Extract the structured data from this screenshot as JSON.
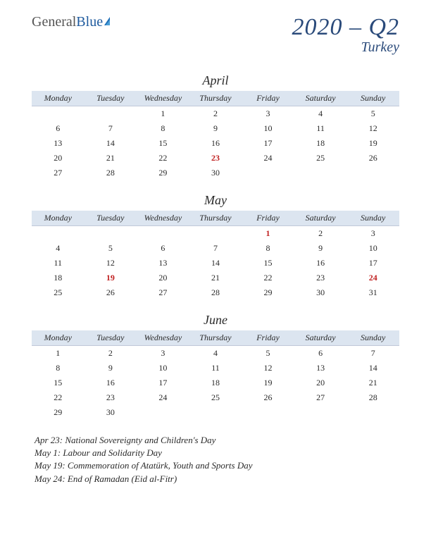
{
  "logo": {
    "part1": "General",
    "part2": "Blue"
  },
  "title": {
    "main": "2020 – Q2",
    "sub": "Turkey"
  },
  "colors": {
    "header_bg": "#dce5f0",
    "holiday_text": "#c02020",
    "title_color": "#2a4a7a",
    "text": "#2a2a2a"
  },
  "weekdays": [
    "Monday",
    "Tuesday",
    "Wednesday",
    "Thursday",
    "Friday",
    "Saturday",
    "Sunday"
  ],
  "months": [
    {
      "name": "April",
      "weeks": [
        [
          "",
          "",
          "1",
          "2",
          "3",
          "4",
          "5"
        ],
        [
          "6",
          "7",
          "8",
          "9",
          "10",
          "11",
          "12"
        ],
        [
          "13",
          "14",
          "15",
          "16",
          "17",
          "18",
          "19"
        ],
        [
          "20",
          "21",
          "22",
          "23",
          "24",
          "25",
          "26"
        ],
        [
          "27",
          "28",
          "29",
          "30",
          "",
          "",
          ""
        ]
      ],
      "holidays": [
        "23"
      ]
    },
    {
      "name": "May",
      "weeks": [
        [
          "",
          "",
          "",
          "",
          "1",
          "2",
          "3"
        ],
        [
          "4",
          "5",
          "6",
          "7",
          "8",
          "9",
          "10"
        ],
        [
          "11",
          "12",
          "13",
          "14",
          "15",
          "16",
          "17"
        ],
        [
          "18",
          "19",
          "20",
          "21",
          "22",
          "23",
          "24"
        ],
        [
          "25",
          "26",
          "27",
          "28",
          "29",
          "30",
          "31"
        ]
      ],
      "holidays": [
        "1",
        "19",
        "24"
      ]
    },
    {
      "name": "June",
      "weeks": [
        [
          "1",
          "2",
          "3",
          "4",
          "5",
          "6",
          "7"
        ],
        [
          "8",
          "9",
          "10",
          "11",
          "12",
          "13",
          "14"
        ],
        [
          "15",
          "16",
          "17",
          "18",
          "19",
          "20",
          "21"
        ],
        [
          "22",
          "23",
          "24",
          "25",
          "26",
          "27",
          "28"
        ],
        [
          "29",
          "30",
          "",
          "",
          "",
          "",
          ""
        ]
      ],
      "holidays": []
    }
  ],
  "holiday_notes": [
    "Apr 23: National Sovereignty and Children's Day",
    "May 1: Labour and Solidarity Day",
    "May 19: Commemoration of Atatürk, Youth and Sports Day",
    "May 24: End of Ramadan (Eid al-Fitr)"
  ]
}
